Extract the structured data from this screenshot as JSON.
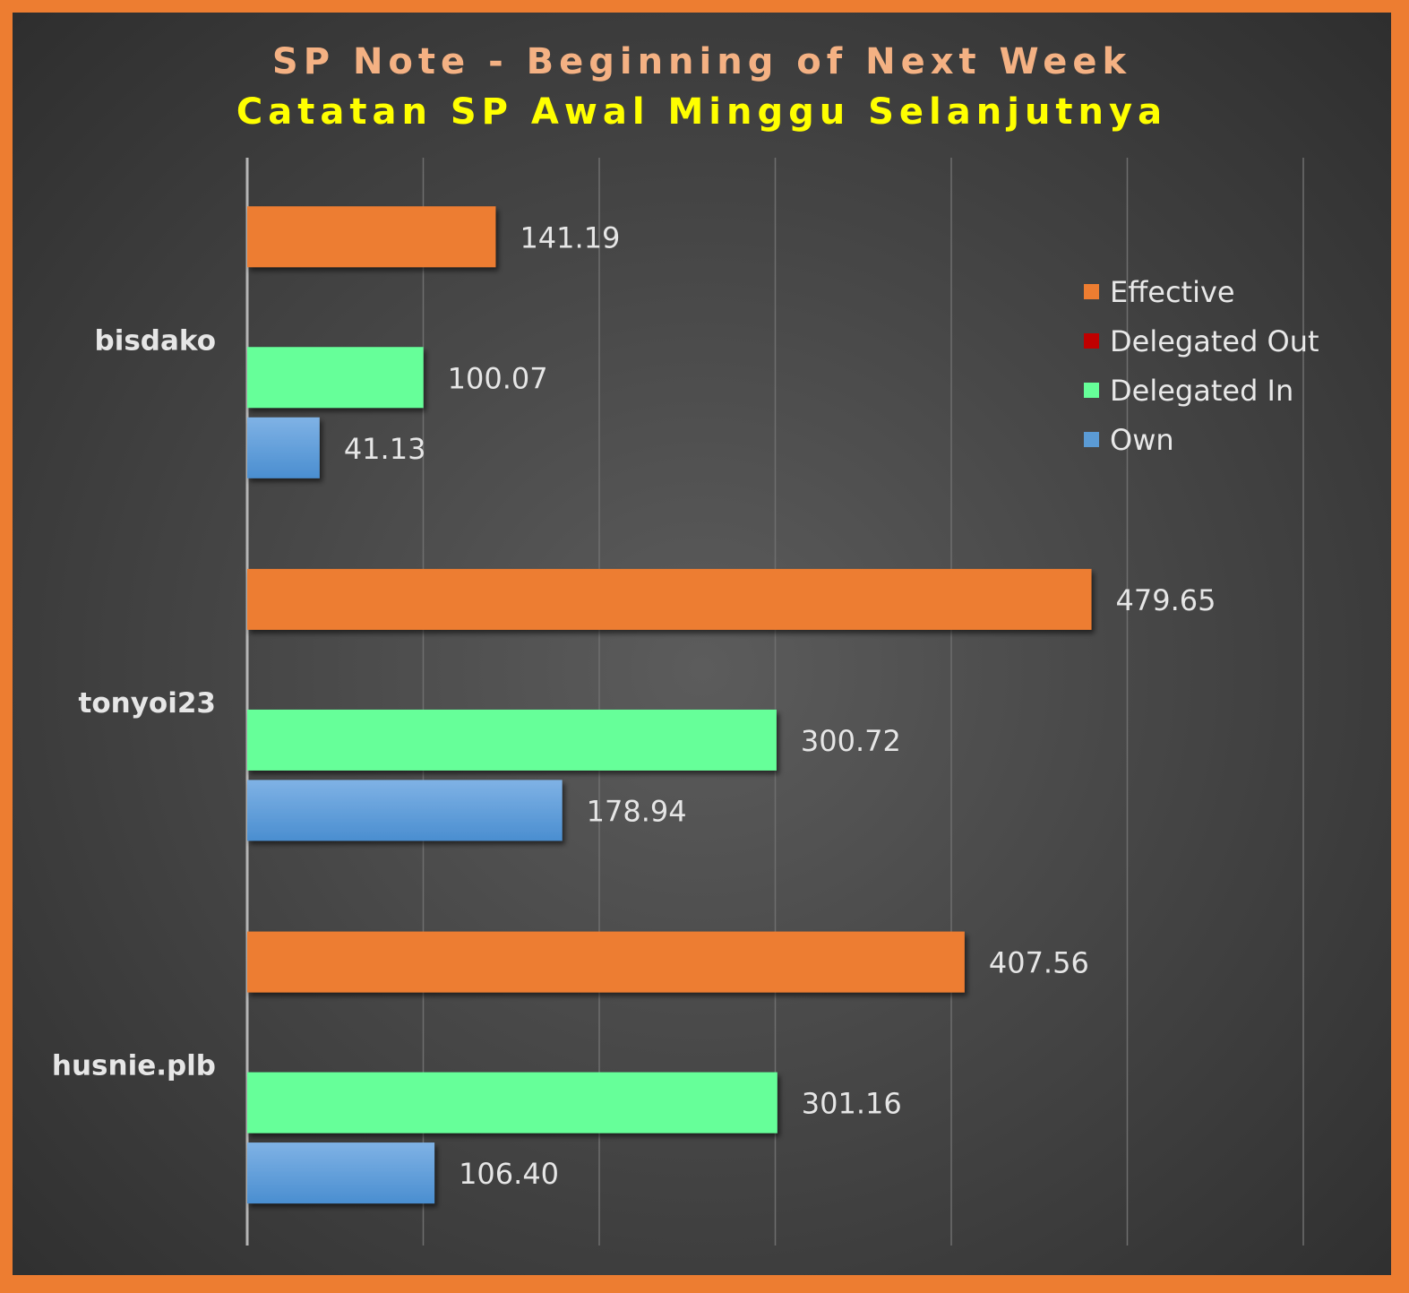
{
  "title": "SP Note - Beginning of Next Week",
  "subtitle": "Catatan SP Awal Minggu Selanjutnya",
  "colors": {
    "Effective": "#ED7D31",
    "Delegated Out": "#C00000",
    "Delegated In": "#66FF99",
    "Own": "#5B9BD5"
  },
  "chart_data": {
    "type": "bar",
    "orientation": "horizontal",
    "categories": [
      "bisdako",
      "tonyoi23",
      "husnie.plb"
    ],
    "series": [
      {
        "name": "Effective",
        "values": [
          141.19,
          479.65,
          407.56
        ],
        "labels": [
          "141.19",
          "479.65",
          "407.56"
        ]
      },
      {
        "name": "Delegated Out",
        "values": [
          0,
          0,
          0
        ],
        "labels": [
          "",
          "",
          ""
        ]
      },
      {
        "name": "Delegated In",
        "values": [
          100.07,
          300.72,
          301.16
        ],
        "labels": [
          "100.07",
          "300.72",
          "301.16"
        ]
      },
      {
        "name": "Own",
        "values": [
          41.13,
          178.94,
          106.4
        ],
        "labels": [
          "41.13",
          "178.94",
          "106.40"
        ]
      }
    ],
    "xlim": [
      0,
      600
    ],
    "grid": true,
    "legend_position": "right",
    "legend_order": [
      "Effective",
      "Delegated Out",
      "Delegated In",
      "Own"
    ]
  }
}
